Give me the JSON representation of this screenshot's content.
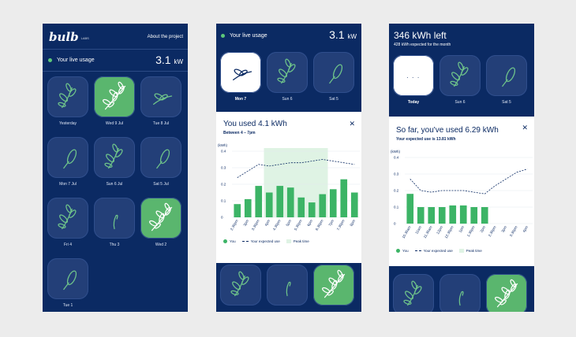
{
  "screen1": {
    "logo": "bulb",
    "logo_sub": "LABS",
    "about": "About the project",
    "live_label": "Your live usage",
    "live_value": "3.1",
    "live_unit": "kW",
    "tiles": [
      {
        "label": "Yesterday",
        "state": "dark",
        "icon": "leaf-cluster"
      },
      {
        "label": "Wed 9 Jul",
        "state": "green",
        "icon": "leaf-branch"
      },
      {
        "label": "Tue 8 Jul",
        "state": "dark",
        "icon": "leaf-pair"
      },
      {
        "label": "Mon 7 Jul",
        "state": "dark",
        "icon": "leaf-single"
      },
      {
        "label": "Sun 6 Jul",
        "state": "dark",
        "icon": "leaf-cluster"
      },
      {
        "label": "Sat 5 Jul",
        "state": "dark",
        "icon": "leaf-single"
      },
      {
        "label": "Fri 4",
        "state": "dark",
        "icon": "leaf-cluster"
      },
      {
        "label": "Thu 3",
        "state": "dark",
        "icon": "sprout"
      },
      {
        "label": "Wed 2",
        "state": "green",
        "icon": "leaf-branch"
      },
      {
        "label": "Tue 1",
        "state": "dark",
        "icon": "leaf-single"
      }
    ]
  },
  "screen2": {
    "live_label": "Your live usage",
    "live_value": "3.1",
    "live_unit": "kW",
    "tiles": [
      {
        "label": "Mon 7",
        "state": "white",
        "icon": "leaf-pair"
      },
      {
        "label": "Sun 6",
        "state": "dark",
        "icon": "leaf-cluster"
      },
      {
        "label": "Sat 5",
        "state": "dark",
        "icon": "leaf-single"
      }
    ],
    "card_title": "You used 4.1 kWh",
    "card_sub": "Between 4 – 7pm",
    "close": "✕",
    "bottom_tiles": [
      {
        "state": "dark",
        "icon": "leaf-cluster"
      },
      {
        "state": "dark",
        "icon": "sprout"
      },
      {
        "state": "green",
        "icon": "leaf-branch"
      }
    ],
    "legend": {
      "you": "You",
      "expected": "Your expected use",
      "peak": "Peak time"
    }
  },
  "screen3": {
    "title": "346 kWh left",
    "subtitle": "428 kWh expected for the month",
    "tiles": [
      {
        "label": "Today",
        "state": "white",
        "icon": "dots"
      },
      {
        "label": "Sun 6",
        "state": "dark",
        "icon": "leaf-cluster"
      },
      {
        "label": "Sat 5",
        "state": "dark",
        "icon": "leaf-single"
      }
    ],
    "today_dots": "· · ·",
    "card_title": "So far, you've used 6.29 kWh",
    "card_sub": "Your expected use is 13.81 kWh",
    "close": "✕",
    "bottom_tiles": [
      {
        "state": "dark",
        "icon": "leaf-cluster"
      },
      {
        "state": "dark",
        "icon": "sprout"
      },
      {
        "state": "green",
        "icon": "leaf-branch"
      }
    ],
    "legend": {
      "you": "You",
      "expected": "Your expected use",
      "peak": "Peak time"
    }
  },
  "chart_data": [
    {
      "type": "bar",
      "ylabel": "(kWh)",
      "ylim": [
        0,
        0.4
      ],
      "yticks": [
        "0.4",
        "0.3",
        "0.2",
        "0.1",
        "0"
      ],
      "categories": [
        "2.30pm",
        "3pm",
        "3.30pm",
        "4pm",
        "4.30pm",
        "5pm",
        "5.30pm",
        "6pm",
        "6.30pm",
        "7pm",
        "7.30pm",
        "8pm"
      ],
      "series": [
        {
          "name": "You",
          "values": [
            0.08,
            0.11,
            0.19,
            0.15,
            0.19,
            0.18,
            0.12,
            0.09,
            0.14,
            0.17,
            0.23,
            0.15
          ]
        },
        {
          "name": "Your expected use",
          "values": [
            0.24,
            0.28,
            0.32,
            0.31,
            0.32,
            0.33,
            0.33,
            0.34,
            0.35,
            0.34,
            0.33,
            0.32
          ]
        }
      ],
      "peak_range": [
        "4pm",
        "7pm"
      ],
      "grid": true
    },
    {
      "type": "bar",
      "ylabel": "(kWh)",
      "ylim": [
        0,
        0.4
      ],
      "yticks": [
        "0.4",
        "0.3",
        "0.2",
        "0.1",
        "0"
      ],
      "categories": [
        "10.30am",
        "11am",
        "11.30am",
        "12pm",
        "12.30pm",
        "1pm",
        "1.30pm",
        "2pm",
        "2.30pm",
        "3pm",
        "3.30pm",
        "4pm"
      ],
      "series": [
        {
          "name": "You",
          "values": [
            0.18,
            0.1,
            0.1,
            0.1,
            0.11,
            0.11,
            0.1,
            0.1,
            null,
            null,
            null,
            null
          ]
        },
        {
          "name": "Your expected use",
          "values": [
            0.27,
            0.2,
            0.19,
            0.2,
            0.2,
            0.2,
            0.19,
            0.18,
            0.23,
            0.27,
            0.31,
            0.33
          ]
        }
      ],
      "grid": true
    }
  ]
}
